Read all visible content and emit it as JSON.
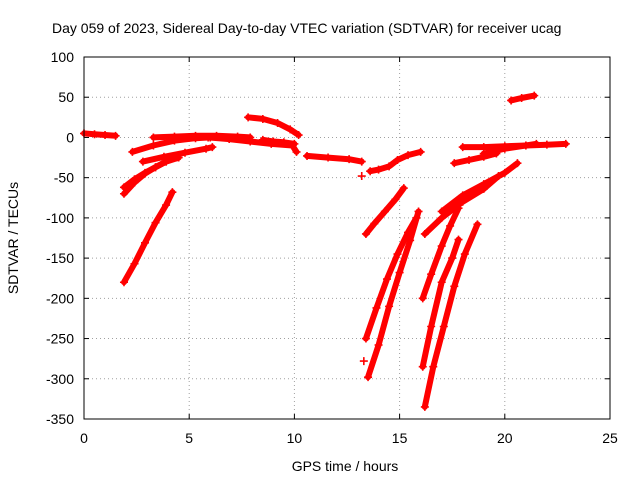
{
  "chart_data": {
    "type": "scatter",
    "title": "Day 059 of 2023, Sidereal Day-to-day VTEC variation (SDTVAR) for receiver ucag",
    "xlabel": "GPS time / hours",
    "ylabel": "SDTVAR / TECUs",
    "xlim": [
      0,
      25
    ],
    "ylim": [
      -350,
      100
    ],
    "xticks": [
      0,
      5,
      10,
      15,
      20,
      25
    ],
    "yticks": [
      100,
      50,
      0,
      -50,
      -100,
      -150,
      -200,
      -250,
      -300,
      -350
    ],
    "grid": true,
    "marker": "+",
    "color": "#ff0000",
    "series": [
      {
        "x": [
          0.0,
          0.5,
          1.0,
          1.5
        ],
        "y": [
          5,
          4,
          3,
          2
        ]
      },
      {
        "x": [
          1.9,
          2.4,
          2.9,
          3.4,
          3.9,
          4.2
        ],
        "y": [
          -180,
          -157,
          -131,
          -106,
          -84,
          -68
        ]
      },
      {
        "x": [
          1.9,
          2.4,
          2.9,
          3.4,
          3.9,
          4.4
        ],
        "y": [
          -62,
          -52,
          -44,
          -37,
          -30,
          -25
        ]
      },
      {
        "x": [
          1.9,
          2.4,
          2.9,
          3.4,
          3.9,
          4.5
        ],
        "y": [
          -70,
          -56,
          -45,
          -37,
          -30,
          -25
        ]
      },
      {
        "x": [
          2.3,
          3.3,
          4.3,
          5.3,
          6.0
        ],
        "y": [
          -18,
          -10,
          -4,
          -1,
          0
        ]
      },
      {
        "x": [
          2.8,
          3.8,
          4.8,
          5.8,
          6.1
        ],
        "y": [
          -30,
          -24,
          -19,
          -14,
          -12
        ]
      },
      {
        "x": [
          3.3,
          4.3,
          5.3,
          6.3,
          7.3,
          7.9
        ],
        "y": [
          0,
          1,
          2,
          2,
          1,
          0
        ]
      },
      {
        "x": [
          5.9,
          6.9,
          7.9,
          8.9,
          9.9,
          10.1
        ],
        "y": [
          0,
          -2,
          -5,
          -8,
          -10,
          -18
        ]
      },
      {
        "x": [
          7.8,
          8.5,
          9.2,
          9.8,
          10.2
        ],
        "y": [
          25,
          23,
          18,
          10,
          3
        ]
      },
      {
        "x": [
          8.5,
          9.0,
          9.5,
          10.0
        ],
        "y": [
          -3,
          -5,
          -6,
          -8
        ]
      },
      {
        "x": [
          10.6,
          11.6,
          12.6,
          13.2
        ],
        "y": [
          -23,
          -25,
          -27,
          -30
        ]
      },
      {
        "x": [
          13.2
        ],
        "y": [
          -48
        ]
      },
      {
        "x": [
          13.6,
          14.0,
          14.5,
          14.9,
          15.4,
          16.0
        ],
        "y": [
          -42,
          -40,
          -36,
          -28,
          -22,
          -18
        ]
      },
      {
        "x": [
          13.4,
          13.8,
          14.3,
          14.8,
          15.2
        ],
        "y": [
          -120,
          -107,
          -92,
          -77,
          -63
        ]
      },
      {
        "x": [
          13.3
        ],
        "y": [
          -278
        ]
      },
      {
        "x": [
          13.4,
          13.9,
          14.4,
          14.9,
          15.4,
          15.8
        ],
        "y": [
          -250,
          -212,
          -176,
          -145,
          -118,
          -100
        ]
      },
      {
        "x": [
          13.5,
          14.0,
          14.5,
          15.0,
          15.5,
          15.9
        ],
        "y": [
          -298,
          -258,
          -210,
          -168,
          -128,
          -92
        ]
      },
      {
        "x": [
          16.1,
          16.5,
          17.0,
          17.4,
          17.8
        ],
        "y": [
          -200,
          -170,
          -135,
          -110,
          -88
        ]
      },
      {
        "x": [
          16.1,
          16.5,
          17.0,
          17.5,
          17.8
        ],
        "y": [
          -285,
          -235,
          -180,
          -150,
          -127
        ]
      },
      {
        "x": [
          16.2,
          16.6,
          17.1,
          17.6,
          18.1,
          18.7
        ],
        "y": [
          -335,
          -285,
          -235,
          -185,
          -145,
          -108
        ]
      },
      {
        "x": [
          16.2,
          17.0,
          18.0,
          19.0,
          19.7
        ],
        "y": [
          -120,
          -100,
          -80,
          -64,
          -48
        ]
      },
      {
        "x": [
          17.0,
          18.0,
          19.0,
          20.0,
          20.6
        ],
        "y": [
          -92,
          -72,
          -58,
          -44,
          -32
        ]
      },
      {
        "x": [
          17.6,
          18.3,
          19.0,
          19.6
        ],
        "y": [
          -32,
          -28,
          -24,
          -20
        ]
      },
      {
        "x": [
          18.0,
          19.0,
          20.0,
          21.0,
          22.0,
          22.9
        ],
        "y": [
          -12,
          -12,
          -11,
          -10,
          -9,
          -8
        ]
      },
      {
        "x": [
          19.0,
          20.0,
          21.0,
          21.5
        ],
        "y": [
          -20,
          -14,
          -10,
          -8
        ]
      },
      {
        "x": [
          20.3,
          20.8,
          21.4
        ],
        "y": [
          46,
          49,
          52
        ]
      }
    ]
  }
}
